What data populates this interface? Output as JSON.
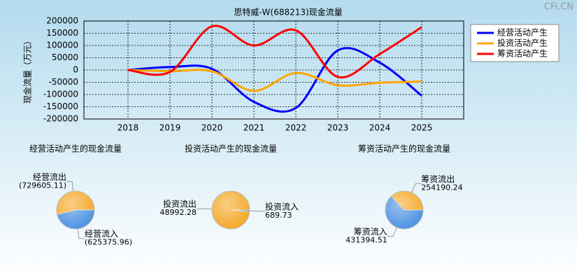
{
  "watermark": "CFi.CN",
  "chart_data": [
    {
      "type": "line",
      "title": "思特威-W(688213)现金流量",
      "y_label": "现金流量（万元）",
      "categories": [
        "2018",
        "2019",
        "2020",
        "2021",
        "2022",
        "2023",
        "2024",
        "2025"
      ],
      "series": [
        {
          "name": "经营活动产生",
          "color": "#0000ff",
          "values": [
            0,
            12000,
            5000,
            -130000,
            -155000,
            80000,
            30000,
            -105000
          ]
        },
        {
          "name": "投资活动产生",
          "color": "#ffa500",
          "values": [
            0,
            -5000,
            -5000,
            -85000,
            -12000,
            -62000,
            -52000,
            -47000
          ]
        },
        {
          "name": "筹资活动产生",
          "color": "#ff0000",
          "values": [
            0,
            -8000,
            178000,
            100000,
            162000,
            -28000,
            65000,
            175000
          ]
        }
      ],
      "ylim": [
        -200000,
        200000
      ],
      "yticks": [
        -200000,
        -150000,
        -100000,
        -50000,
        0,
        50000,
        100000,
        150000,
        200000
      ],
      "grid": true,
      "legend": "right"
    },
    {
      "type": "pie",
      "title": "经营活动产生的现金流量",
      "categories": [
        "经营流出",
        "经营流入"
      ],
      "values": [
        729605.11,
        625375.96
      ],
      "value_labels": [
        "(729605.11)",
        "(625375.96)"
      ],
      "colors": [
        "#f5a623",
        "#4a90e2"
      ]
    },
    {
      "type": "pie",
      "title": "投资活动产生的现金流量",
      "categories": [
        "投资流出",
        "投资流入"
      ],
      "values": [
        48992.28,
        689.73
      ],
      "colors": [
        "#f5a623",
        "#4a90e2"
      ]
    },
    {
      "type": "pie",
      "title": "筹资活动产生的现金流量",
      "categories": [
        "筹资流出",
        "筹资流入"
      ],
      "values": [
        254190.24,
        431394.51
      ],
      "colors": [
        "#f5a623",
        "#4a90e2"
      ]
    }
  ]
}
